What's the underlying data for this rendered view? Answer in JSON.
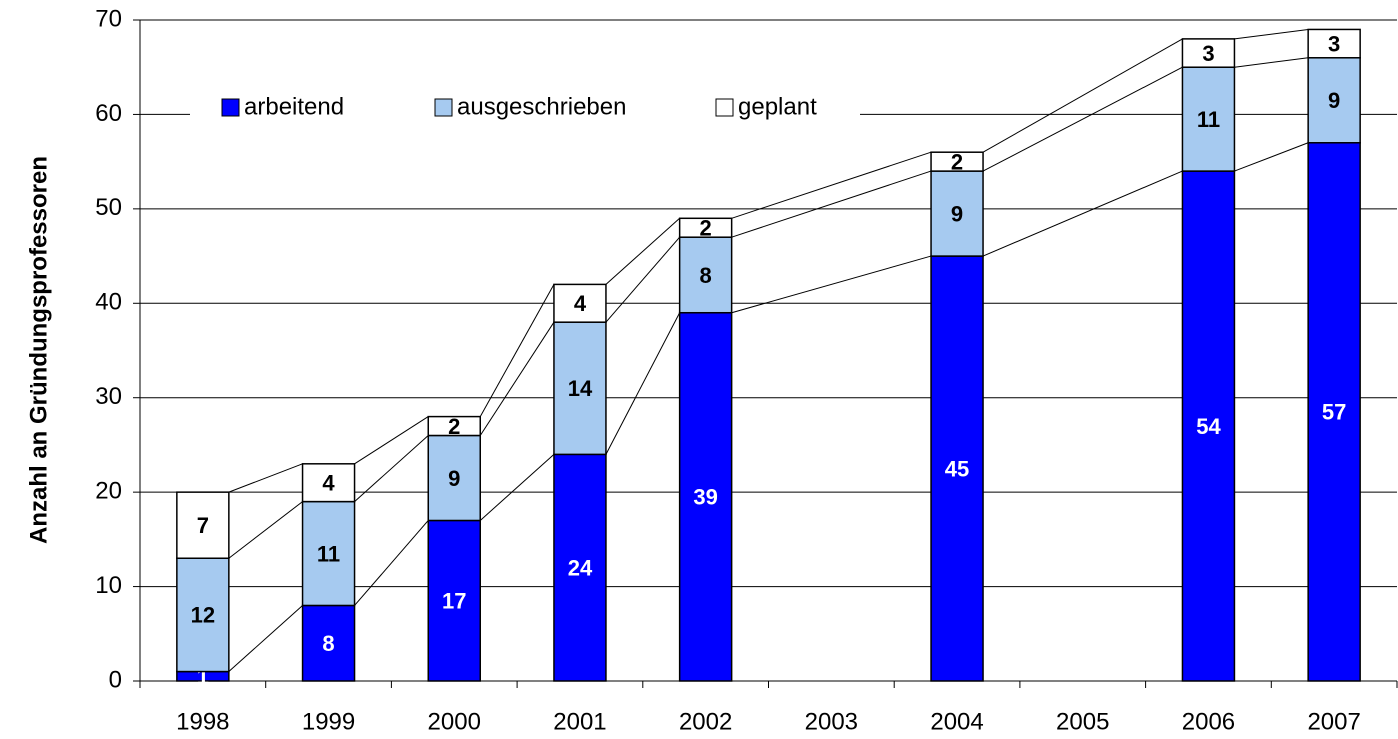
{
  "chart_data": {
    "type": "stacked_bar",
    "y_label": "Anzahl an Gründungsprofessoren",
    "categories": [
      "1998",
      "1999",
      "2000",
      "2001",
      "2002",
      "2003",
      "2004",
      "2005",
      "2006",
      "2007"
    ],
    "series": [
      {
        "name": "arbeitend",
        "color": "#0000ff",
        "label_color": "#ffffff",
        "values": [
          1,
          8,
          17,
          24,
          39,
          null,
          45,
          null,
          54,
          57
        ]
      },
      {
        "name": "ausgeschrieben",
        "color": "#a6caf0",
        "label_color": "#000000",
        "values": [
          12,
          11,
          9,
          14,
          8,
          null,
          9,
          null,
          11,
          9
        ]
      },
      {
        "name": "geplant",
        "color": "#ffffff",
        "label_color": "#000000",
        "values": [
          7,
          4,
          2,
          4,
          2,
          null,
          2,
          null,
          3,
          3
        ]
      }
    ],
    "ylim": [
      0,
      70
    ],
    "yticks": [
      0,
      10,
      20,
      30,
      40,
      50,
      60,
      70
    ],
    "grid": true,
    "series_lines": true
  }
}
